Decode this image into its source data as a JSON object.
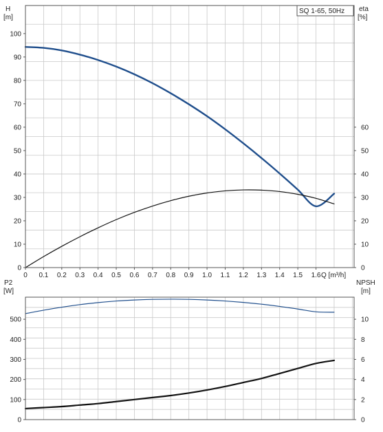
{
  "chart_data": [
    {
      "type": "line",
      "panel": "top",
      "title": "SQ 1-65, 50Hz",
      "xlabel": "Q [m³/h]",
      "x_ticks": [
        "0",
        "0.1",
        "0.2",
        "0.3",
        "0.4",
        "0.5",
        "0.6",
        "0.7",
        "0.8",
        "0.9",
        "1.0",
        "1.1",
        "1.2",
        "1.3",
        "1.4",
        "1.5",
        "1.6"
      ],
      "xlim": [
        0,
        1.81
      ],
      "left_axis": {
        "label_line1": "H",
        "label_line2": "[m]",
        "ylim": [
          0,
          112
        ],
        "ticks": [
          "0",
          "10",
          "20",
          "30",
          "40",
          "50",
          "60",
          "70",
          "80",
          "90",
          "100"
        ]
      },
      "right_axis": {
        "label_line1": "eta",
        "label_line2": "[%]",
        "ylim": [
          0,
          112
        ],
        "ticks": [
          "0",
          "10",
          "20",
          "30",
          "40",
          "50",
          "60"
        ]
      },
      "grid": true,
      "series": [
        {
          "axis": "left",
          "color": "#1f4e8c",
          "x": [
            0,
            0.1,
            0.2,
            0.3,
            0.4,
            0.5,
            0.6,
            0.7,
            0.8,
            0.9,
            1.0,
            1.1,
            1.2,
            1.3,
            1.4,
            1.5,
            1.6,
            1.7
          ],
          "y": [
            94.3,
            93.9,
            92.8,
            91.0,
            88.7,
            85.9,
            82.6,
            78.8,
            74.5,
            69.8,
            64.7,
            59.1,
            53.1,
            46.8,
            40.2,
            33.3,
            26.2,
            31.6
          ]
        },
        {
          "axis": "right",
          "color": "#111111",
          "x": [
            0,
            0.1,
            0.2,
            0.3,
            0.4,
            0.5,
            0.6,
            0.7,
            0.8,
            0.9,
            1.0,
            1.1,
            1.2,
            1.3,
            1.4,
            1.5,
            1.6,
            1.7
          ],
          "y": [
            0,
            4.7,
            9.1,
            13.2,
            17.0,
            20.5,
            23.6,
            26.3,
            28.6,
            30.5,
            31.9,
            32.8,
            33.2,
            33.1,
            32.5,
            31.3,
            29.6,
            27.2
          ]
        }
      ]
    },
    {
      "type": "line",
      "panel": "bottom",
      "xlim": [
        0,
        1.81
      ],
      "left_axis": {
        "label_line1": "P2",
        "label_line2": "[W]",
        "ylim": [
          0,
          610
        ],
        "ticks": [
          "0",
          "100",
          "200",
          "300",
          "400",
          "500"
        ]
      },
      "right_axis": {
        "label_line1": "NPSH",
        "label_line2": "[m]",
        "ylim": [
          0,
          12.2
        ],
        "ticks": [
          "0",
          "2",
          "4",
          "6",
          "8",
          "10"
        ]
      },
      "grid": true,
      "series": [
        {
          "axis": "left",
          "color": "#1f4e8c",
          "x": [
            0,
            0.1,
            0.2,
            0.3,
            0.4,
            0.5,
            0.6,
            0.7,
            0.8,
            0.9,
            1.0,
            1.1,
            1.2,
            1.3,
            1.4,
            1.5,
            1.6,
            1.7
          ],
          "y": [
            528,
            545,
            560,
            573,
            583,
            591,
            596,
            599,
            600,
            599,
            596,
            591,
            584,
            575,
            564,
            551,
            537,
            535
          ]
        },
        {
          "axis": "right",
          "color": "#111111",
          "x": [
            0,
            0.1,
            0.2,
            0.3,
            0.4,
            0.5,
            0.6,
            0.7,
            0.8,
            0.9,
            1.0,
            1.1,
            1.2,
            1.3,
            1.4,
            1.5,
            1.6,
            1.7
          ],
          "y": [
            1.1,
            1.2,
            1.3,
            1.45,
            1.6,
            1.8,
            2.0,
            2.2,
            2.4,
            2.65,
            2.95,
            3.3,
            3.7,
            4.1,
            4.6,
            5.1,
            5.6,
            5.9
          ]
        }
      ]
    }
  ]
}
